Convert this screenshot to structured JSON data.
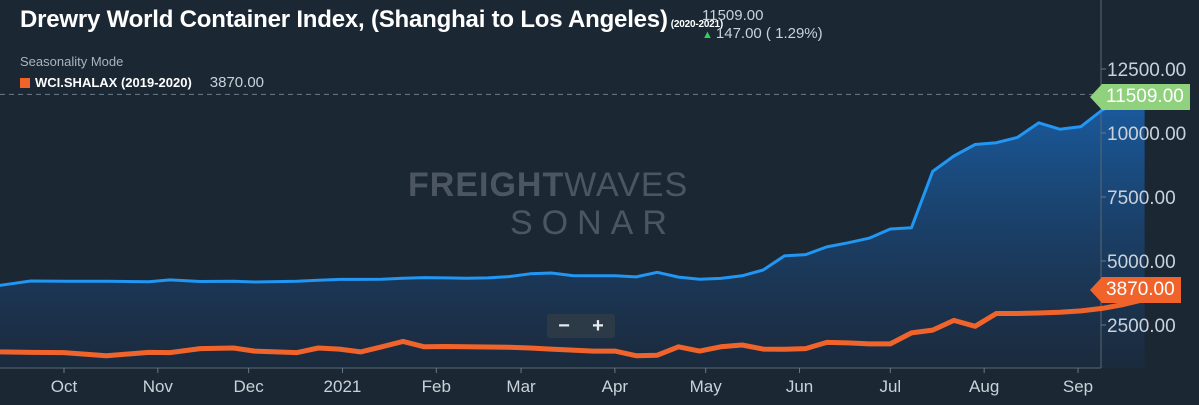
{
  "header": {
    "title": "Drewry World Container Index, (Shanghai to Los Angeles)",
    "title_range": "(2020-2021)",
    "current_value": "11509.00",
    "change_text": "147.00 ( 1.29%)",
    "mode_label": "Seasonality Mode",
    "legend_label": "WCI.SHALAX (2019-2020)",
    "legend_value": "3870.00"
  },
  "watermark": {
    "line1_bold": "FREIGHT",
    "line1_light": "WAVES",
    "line2": "SONAR"
  },
  "zoom": {
    "minus": "−",
    "plus": "+"
  },
  "tags": {
    "primary": "11509.00",
    "secondary": "3870.00"
  },
  "colors": {
    "background": "#1b2733",
    "primary_line": "#2196f3",
    "secondary_line": "#f0642c",
    "tag_primary": "#8fd17d"
  },
  "chart_data": {
    "type": "line",
    "title": "Drewry World Container Index, (Shanghai to Los Angeles)",
    "x_axis": {
      "type": "date",
      "ticks": [
        {
          "date": "2020-10-01",
          "label": "Oct"
        },
        {
          "date": "2020-11-01",
          "label": "Nov"
        },
        {
          "date": "2020-12-01",
          "label": "Dec"
        },
        {
          "date": "2021-01-01",
          "label": "2021"
        },
        {
          "date": "2021-02-01",
          "label": "Feb"
        },
        {
          "date": "2021-03-01",
          "label": "Mar"
        },
        {
          "date": "2021-04-01",
          "label": "Apr"
        },
        {
          "date": "2021-05-01",
          "label": "May"
        },
        {
          "date": "2021-06-01",
          "label": "Jun"
        },
        {
          "date": "2021-07-01",
          "label": "Jul"
        },
        {
          "date": "2021-08-01",
          "label": "Aug"
        },
        {
          "date": "2021-09-01",
          "label": "Sep"
        }
      ],
      "range": [
        "2020-08-29",
        "2021-09-11"
      ]
    },
    "y_axis": {
      "ticks": [
        {
          "value": 2500,
          "label": "2500.00"
        },
        {
          "value": 5000,
          "label": "5000.00"
        },
        {
          "value": 7500,
          "label": "7500.00"
        },
        {
          "value": 10000,
          "label": "10000.00"
        },
        {
          "value": 12500,
          "label": "12500.00"
        }
      ],
      "range": [
        500,
        15200
      ]
    },
    "grid": false,
    "series": [
      {
        "name": "(2020-2021)",
        "style": "area",
        "points": [
          [
            "2020-08-29",
            3950
          ],
          [
            "2020-09-10",
            4050
          ],
          [
            "2020-09-20",
            4220
          ],
          [
            "2020-10-01",
            4210
          ],
          [
            "2020-10-15",
            4210
          ],
          [
            "2020-10-29",
            4190
          ],
          [
            "2020-11-05",
            4260
          ],
          [
            "2020-11-15",
            4200
          ],
          [
            "2020-11-26",
            4210
          ],
          [
            "2020-12-03",
            4180
          ],
          [
            "2020-12-17",
            4210
          ],
          [
            "2020-12-24",
            4250
          ],
          [
            "2020-12-31",
            4280
          ],
          [
            "2021-01-07",
            4280
          ],
          [
            "2021-01-14",
            4290
          ],
          [
            "2021-01-21",
            4330
          ],
          [
            "2021-01-28",
            4350
          ],
          [
            "2021-02-04",
            4340
          ],
          [
            "2021-02-11",
            4330
          ],
          [
            "2021-02-18",
            4340
          ],
          [
            "2021-02-25",
            4390
          ],
          [
            "2021-03-04",
            4500
          ],
          [
            "2021-03-11",
            4530
          ],
          [
            "2021-03-18",
            4430
          ],
          [
            "2021-03-25",
            4420
          ],
          [
            "2021-04-01",
            4420
          ],
          [
            "2021-04-08",
            4380
          ],
          [
            "2021-04-15",
            4560
          ],
          [
            "2021-04-22",
            4370
          ],
          [
            "2021-04-29",
            4290
          ],
          [
            "2021-05-06",
            4320
          ],
          [
            "2021-05-13",
            4420
          ],
          [
            "2021-05-20",
            4650
          ],
          [
            "2021-05-27",
            5200
          ],
          [
            "2021-06-03",
            5250
          ],
          [
            "2021-06-10",
            5550
          ],
          [
            "2021-06-17",
            5710
          ],
          [
            "2021-06-24",
            5890
          ],
          [
            "2021-07-01",
            6250
          ],
          [
            "2021-07-08",
            6300
          ],
          [
            "2021-07-15",
            8500
          ],
          [
            "2021-07-22",
            9100
          ],
          [
            "2021-07-29",
            9550
          ],
          [
            "2021-08-05",
            9620
          ],
          [
            "2021-08-12",
            9830
          ],
          [
            "2021-08-19",
            10400
          ],
          [
            "2021-08-26",
            10150
          ],
          [
            "2021-09-02",
            10250
          ],
          [
            "2021-09-09",
            10900
          ],
          [
            "2021-09-16",
            11300
          ],
          [
            "2021-09-23",
            11509
          ]
        ]
      },
      {
        "name": "WCI.SHALAX (2019-2020)",
        "style": "line",
        "points": [
          [
            "2020-08-29",
            1650
          ],
          [
            "2020-09-10",
            1450
          ],
          [
            "2020-09-20",
            1430
          ],
          [
            "2020-10-01",
            1420
          ],
          [
            "2020-10-15",
            1300
          ],
          [
            "2020-10-29",
            1430
          ],
          [
            "2020-11-05",
            1420
          ],
          [
            "2020-11-15",
            1580
          ],
          [
            "2020-11-26",
            1600
          ],
          [
            "2020-12-03",
            1480
          ],
          [
            "2020-12-17",
            1420
          ],
          [
            "2020-12-24",
            1600
          ],
          [
            "2020-12-31",
            1560
          ],
          [
            "2021-01-07",
            1450
          ],
          [
            "2021-01-14",
            1650
          ],
          [
            "2021-01-21",
            1860
          ],
          [
            "2021-01-28",
            1650
          ],
          [
            "2021-02-04",
            1660
          ],
          [
            "2021-02-11",
            1650
          ],
          [
            "2021-02-18",
            1640
          ],
          [
            "2021-02-25",
            1630
          ],
          [
            "2021-03-04",
            1600
          ],
          [
            "2021-03-11",
            1560
          ],
          [
            "2021-03-18",
            1520
          ],
          [
            "2021-03-25",
            1480
          ],
          [
            "2021-04-01",
            1480
          ],
          [
            "2021-04-08",
            1300
          ],
          [
            "2021-04-15",
            1320
          ],
          [
            "2021-04-22",
            1650
          ],
          [
            "2021-04-29",
            1480
          ],
          [
            "2021-05-06",
            1650
          ],
          [
            "2021-05-13",
            1720
          ],
          [
            "2021-05-20",
            1560
          ],
          [
            "2021-05-27",
            1550
          ],
          [
            "2021-06-03",
            1580
          ],
          [
            "2021-06-10",
            1820
          ],
          [
            "2021-06-17",
            1800
          ],
          [
            "2021-06-24",
            1760
          ],
          [
            "2021-07-01",
            1760
          ],
          [
            "2021-07-08",
            2190
          ],
          [
            "2021-07-15",
            2300
          ],
          [
            "2021-07-22",
            2680
          ],
          [
            "2021-07-29",
            2450
          ],
          [
            "2021-08-05",
            2950
          ],
          [
            "2021-08-12",
            2950
          ],
          [
            "2021-08-19",
            2970
          ],
          [
            "2021-08-26",
            3000
          ],
          [
            "2021-09-02",
            3050
          ],
          [
            "2021-09-09",
            3150
          ],
          [
            "2021-09-16",
            3300
          ],
          [
            "2021-09-23",
            3500
          ],
          [
            "2021-09-30",
            3870
          ]
        ]
      }
    ]
  }
}
